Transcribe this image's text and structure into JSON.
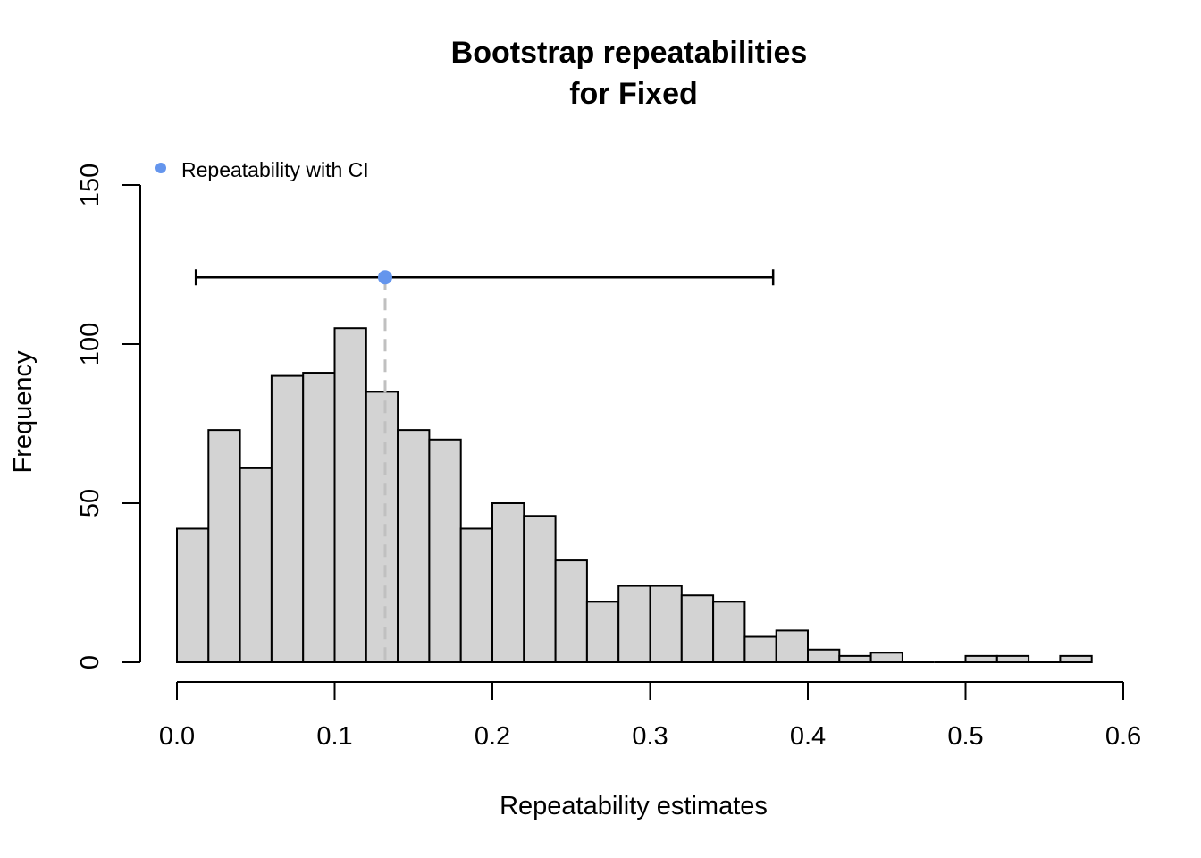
{
  "chart_data": {
    "type": "bar",
    "subtype": "histogram",
    "title": [
      "Bootstrap repeatabilities",
      "for Fixed"
    ],
    "xlabel": "Repeatability estimates",
    "ylabel": "Frequency",
    "xlim": [
      0.0,
      0.6
    ],
    "ylim": [
      0,
      150
    ],
    "x_ticks": [
      0.0,
      0.1,
      0.2,
      0.3,
      0.4,
      0.5,
      0.6
    ],
    "x_tick_labels": [
      "0.0",
      "0.1",
      "0.2",
      "0.3",
      "0.4",
      "0.5",
      "0.6"
    ],
    "y_ticks": [
      0,
      50,
      100,
      150
    ],
    "y_tick_labels": [
      "0",
      "50",
      "100",
      "150"
    ],
    "bin_width": 0.02,
    "bin_start": 0.0,
    "values": [
      42,
      73,
      61,
      90,
      91,
      105,
      85,
      73,
      70,
      42,
      50,
      46,
      32,
      19,
      24,
      24,
      21,
      19,
      8,
      10,
      4,
      2,
      3,
      0,
      0,
      2,
      2,
      0,
      2
    ],
    "bar_color": "#d3d3d3",
    "bar_border_color": "#000000",
    "estimate": {
      "value": 0.132,
      "ci_lower": 0.012,
      "ci_upper": 0.378,
      "y": 121,
      "point_color": "#6495ed",
      "line_color": "#c0c0c0"
    },
    "legend": {
      "label": "Repeatability with CI",
      "color": "#6495ed",
      "position": "top-left"
    },
    "grid": false
  }
}
